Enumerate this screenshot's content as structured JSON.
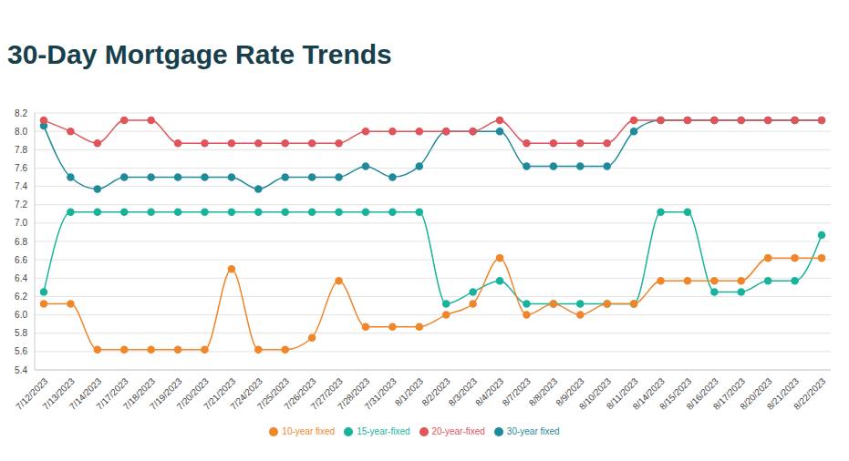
{
  "chart_data": {
    "type": "line",
    "title": "30-Day Mortgage Rate Trends",
    "categories": [
      "7/12/2023",
      "7/13/2023",
      "7/14/2023",
      "7/17/2023",
      "7/18/2023",
      "7/19/2023",
      "7/20/2023",
      "7/21/2023",
      "7/24/2023",
      "7/25/2023",
      "7/26/2023",
      "7/27/2023",
      "7/28/2023",
      "7/31/2023",
      "8/1/2023",
      "8/2/2023",
      "8/3/2023",
      "8/4/2023",
      "8/7/2023",
      "8/8/2023",
      "8/9/2023",
      "8/10/2023",
      "8/11/2023",
      "8/14/2023",
      "8/15/2023",
      "8/16/2023",
      "8/17/2023",
      "8/20/2023",
      "8/21/2023",
      "8/22/2023"
    ],
    "series": [
      {
        "name": "30-year fixed",
        "color": "#1f8a9a",
        "values": [
          8.06,
          7.5,
          7.37,
          7.5,
          7.5,
          7.5,
          7.5,
          7.5,
          7.37,
          7.5,
          7.5,
          7.5,
          7.62,
          7.5,
          7.62,
          8.0,
          8.0,
          8.0,
          7.62,
          7.62,
          7.62,
          7.62,
          8.0,
          8.12,
          8.12,
          8.12,
          8.12,
          8.12,
          8.12,
          8.12
        ]
      },
      {
        "name": "20-year-fixed",
        "color": "#e0545a",
        "values": [
          8.12,
          8.0,
          7.87,
          8.12,
          8.12,
          7.87,
          7.87,
          7.87,
          7.87,
          7.87,
          7.87,
          7.87,
          8.0,
          8.0,
          8.0,
          8.0,
          8.0,
          8.12,
          7.87,
          7.87,
          7.87,
          7.87,
          8.12,
          8.12,
          8.12,
          8.12,
          8.12,
          8.12,
          8.12,
          8.12
        ]
      },
      {
        "name": "15-year-fixed",
        "color": "#17b39b",
        "values": [
          6.25,
          7.12,
          7.12,
          7.12,
          7.12,
          7.12,
          7.12,
          7.12,
          7.12,
          7.12,
          7.12,
          7.12,
          7.12,
          7.12,
          7.12,
          6.12,
          6.25,
          6.37,
          6.12,
          6.12,
          6.12,
          6.12,
          6.12,
          7.12,
          7.12,
          6.25,
          6.25,
          6.37,
          6.37,
          6.87
        ]
      },
      {
        "name": "10-year fixed",
        "color": "#f0862a",
        "values": [
          6.12,
          6.12,
          5.62,
          5.62,
          5.62,
          5.62,
          5.62,
          6.5,
          5.62,
          5.62,
          5.75,
          6.37,
          5.87,
          5.87,
          5.87,
          6.0,
          6.12,
          6.62,
          6.0,
          6.12,
          6.0,
          6.12,
          6.12,
          6.37,
          6.37,
          6.37,
          6.37,
          6.62,
          6.62,
          6.62
        ]
      }
    ],
    "ylim": [
      5.4,
      8.2
    ],
    "yticks": [
      5.4,
      5.6,
      5.8,
      {
        "value": 6,
        "label": "6.0"
      },
      6.2,
      6.4,
      6.6,
      6.8,
      {
        "value": 7,
        "label": "7.0"
      },
      7.2,
      7.4,
      7.6,
      7.8,
      {
        "value": 8,
        "label": "8.0"
      },
      8.2
    ],
    "grid": true,
    "legend": "bottom"
  }
}
